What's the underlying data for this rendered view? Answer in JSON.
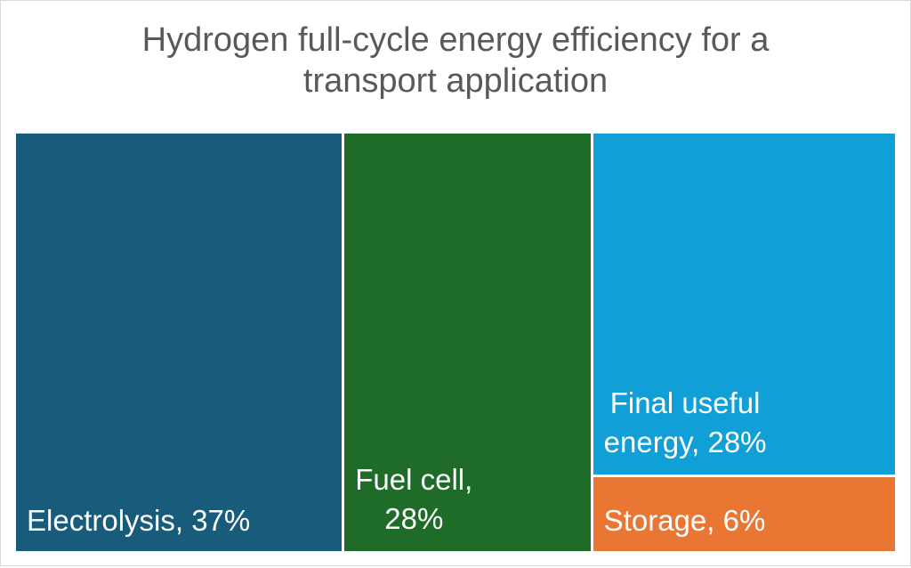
{
  "chart_data": {
    "type": "treemap",
    "title": "Hydrogen full-cycle energy efficiency for a transport application",
    "title_lines": [
      "Hydrogen full-cycle energy efficiency for a",
      "transport application"
    ],
    "items": [
      {
        "name": "Electrolysis",
        "value": 37,
        "label": "Electrolysis, 37%",
        "label_lines": [
          "Electrolysis, 37%"
        ],
        "color": "#185b7b"
      },
      {
        "name": "Fuel cell",
        "value": 28,
        "label": "Fuel cell, 28%",
        "label_lines": [
          "Fuel cell,",
          "28%"
        ],
        "color": "#1e6c27"
      },
      {
        "name": "Final useful energy",
        "value": 28,
        "label": "Final useful energy, 28%",
        "label_lines": [
          "Final useful",
          "energy, 28%"
        ],
        "color": "#119fd7"
      },
      {
        "name": "Storage",
        "value": 6,
        "label": "Storage, 6%",
        "label_lines": [
          "Storage, 6%"
        ],
        "color": "#ea7633"
      }
    ]
  }
}
